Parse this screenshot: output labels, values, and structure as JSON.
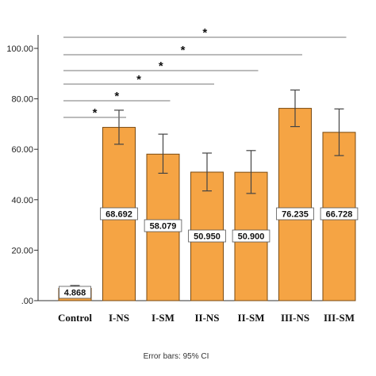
{
  "chart_data": {
    "type": "bar",
    "categories": [
      "Control",
      "I-NS",
      "I-SM",
      "II-NS",
      "II-SM",
      "III-NS",
      "III-SM"
    ],
    "values": [
      4.868,
      68.692,
      58.079,
      50.95,
      50.9,
      76.235,
      66.728
    ],
    "value_labels": [
      "4.868",
      "68.692",
      "58.079",
      "50.950",
      "50.900",
      "76.235",
      "66.728"
    ],
    "error_low": [
      4.0,
      62.0,
      50.5,
      43.5,
      42.5,
      69.0,
      57.5
    ],
    "error_high": [
      6.0,
      75.5,
      66.0,
      58.5,
      59.5,
      83.5,
      76.0
    ],
    "ylim": [
      0,
      100
    ],
    "yticks": [
      0,
      20,
      40,
      60,
      80,
      100
    ],
    "ytick_labels": [
      ".00",
      "20.00",
      "40.00",
      "60.00",
      "80.00",
      "100.00"
    ],
    "xlabel": "",
    "ylabel": "",
    "title": "",
    "bar_color": "#F5A444",
    "bar_edge_color": "#7a4a10",
    "significance": [
      {
        "from": "Control",
        "to": "I-NS",
        "marker": "*"
      },
      {
        "from": "Control",
        "to": "I-SM",
        "marker": "*"
      },
      {
        "from": "Control",
        "to": "II-NS",
        "marker": "*"
      },
      {
        "from": "Control",
        "to": "II-SM",
        "marker": "*"
      },
      {
        "from": "Control",
        "to": "III-NS",
        "marker": "*"
      },
      {
        "from": "Control",
        "to": "III-SM",
        "marker": "*"
      }
    ],
    "footnote": "Error bars: 95% CI"
  }
}
